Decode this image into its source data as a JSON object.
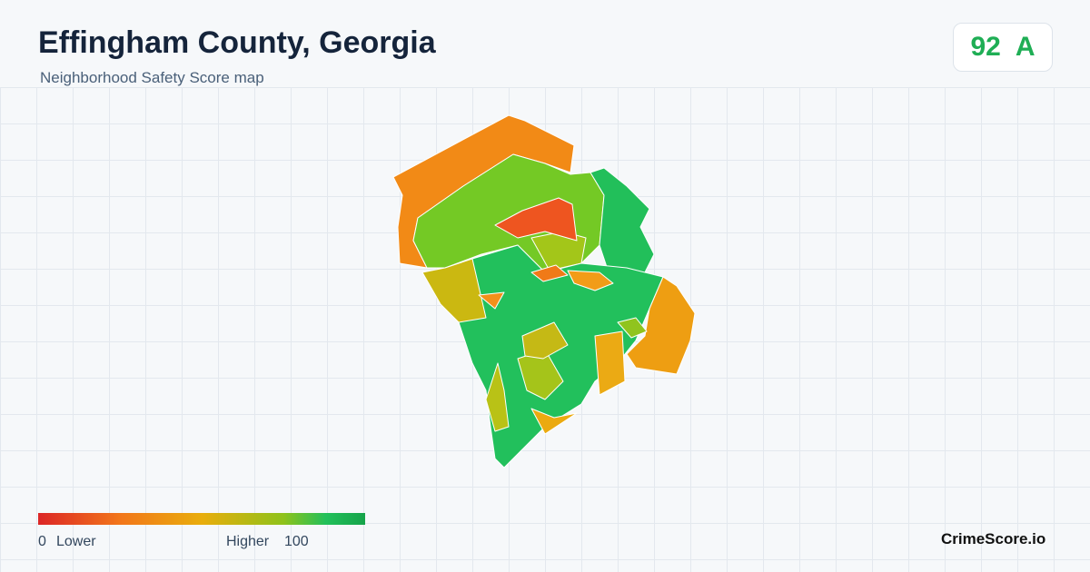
{
  "header": {
    "title": "Effingham County, Georgia",
    "subtitle": "Neighborhood Safety Score map"
  },
  "badge": {
    "score": 92,
    "grade": "A"
  },
  "legend": {
    "min": 0,
    "min_label": "Lower",
    "max_label": "Higher",
    "max": 100
  },
  "brand": "CrimeScore.io"
}
